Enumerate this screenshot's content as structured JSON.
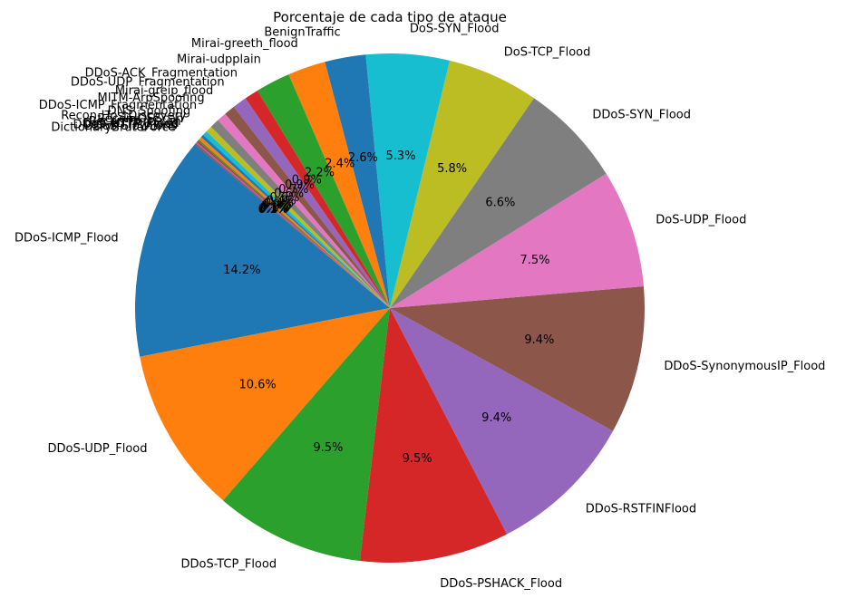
{
  "chart_data": {
    "type": "pie",
    "title": "Porcentaje de cada tipo de ataque",
    "start_angle_deg": 140,
    "direction": "counterclockwise",
    "slices": [
      {
        "label": "DDoS-ICMP_Flood",
        "value": 14.2,
        "pct_text": "14.2%",
        "color": "#1f77b4"
      },
      {
        "label": "DDoS-UDP_Flood",
        "value": 10.6,
        "pct_text": "10.6%",
        "color": "#ff7f0e"
      },
      {
        "label": "DDoS-TCP_Flood",
        "value": 9.5,
        "pct_text": "9.5%",
        "color": "#2ca02c"
      },
      {
        "label": "DDoS-PSHACK_Flood",
        "value": 9.5,
        "pct_text": "9.5%",
        "color": "#d62728"
      },
      {
        "label": "DDoS-RSTFINFlood",
        "value": 9.4,
        "pct_text": "9.4%",
        "color": "#9467bd"
      },
      {
        "label": "DDoS-SynonymousIP_Flood",
        "value": 9.4,
        "pct_text": "9.4%",
        "color": "#8c564b"
      },
      {
        "label": "DoS-UDP_Flood",
        "value": 7.5,
        "pct_text": "7.5%",
        "color": "#e377c2"
      },
      {
        "label": "DDoS-SYN_Flood",
        "value": 6.6,
        "pct_text": "6.6%",
        "color": "#7f7f7f"
      },
      {
        "label": "DoS-TCP_Flood",
        "value": 5.8,
        "pct_text": "5.8%",
        "color": "#bcbd22"
      },
      {
        "label": "DoS-SYN_Flood",
        "value": 5.3,
        "pct_text": "5.3%",
        "color": "#17becf"
      },
      {
        "label": "BenignTraffic",
        "value": 2.6,
        "pct_text": "2.6%",
        "color": "#1f77b4"
      },
      {
        "label": "Mirai-greeth_flood",
        "value": 2.4,
        "pct_text": "2.4%",
        "color": "#ff7f0e"
      },
      {
        "label": "Mirai-udpplain",
        "value": 2.2,
        "pct_text": "2.2%",
        "color": "#2ca02c"
      },
      {
        "label": "DDoS-ACK_Fragmentation",
        "value": 0.9,
        "pct_text": "0.9%",
        "color": "#d62728"
      },
      {
        "label": "DDoS-UDP_Fragmentation",
        "value": 0.9,
        "pct_text": "0.9%",
        "color": "#9467bd"
      },
      {
        "label": "Mirai-greip_flood",
        "value": 0.7,
        "pct_text": "0.7%",
        "color": "#8c564b"
      },
      {
        "label": "MITM-ArpSpoofing",
        "value": 0.6,
        "pct_text": "0.6%",
        "color": "#e377c2"
      },
      {
        "label": "DDoS-ICMP_Fragmentation",
        "value": 0.6,
        "pct_text": "0.6%",
        "color": "#7f7f7f"
      },
      {
        "label": "DNS_Spoofing",
        "value": 0.4,
        "pct_text": "0.4%",
        "color": "#bcbd22"
      },
      {
        "label": "Recon-HostDiscovery",
        "value": 0.3,
        "pct_text": "0.3%",
        "color": "#17becf"
      },
      {
        "label": "Recon-OSScan",
        "value": 0.2,
        "pct_text": "0.2%",
        "color": "#1f77b4"
      },
      {
        "label": "Recon-PortScan",
        "value": 0.2,
        "pct_text": "0.2%",
        "color": "#ff7f0e"
      },
      {
        "label": "DoS-HTTP_Flood",
        "value": 0.1,
        "pct_text": "0.1%",
        "color": "#2ca02c"
      },
      {
        "label": "DDoS-HTTP_Flood",
        "value": 0.1,
        "pct_text": "0.1%",
        "color": "#d62728"
      },
      {
        "label": "DDoS-SlowLoris",
        "value": 0.1,
        "pct_text": "0.1%",
        "color": "#9467bd"
      },
      {
        "label": "DictionaryBruteForce",
        "value": 0.1,
        "pct_text": "0.1%",
        "color": "#8c564b"
      }
    ]
  }
}
